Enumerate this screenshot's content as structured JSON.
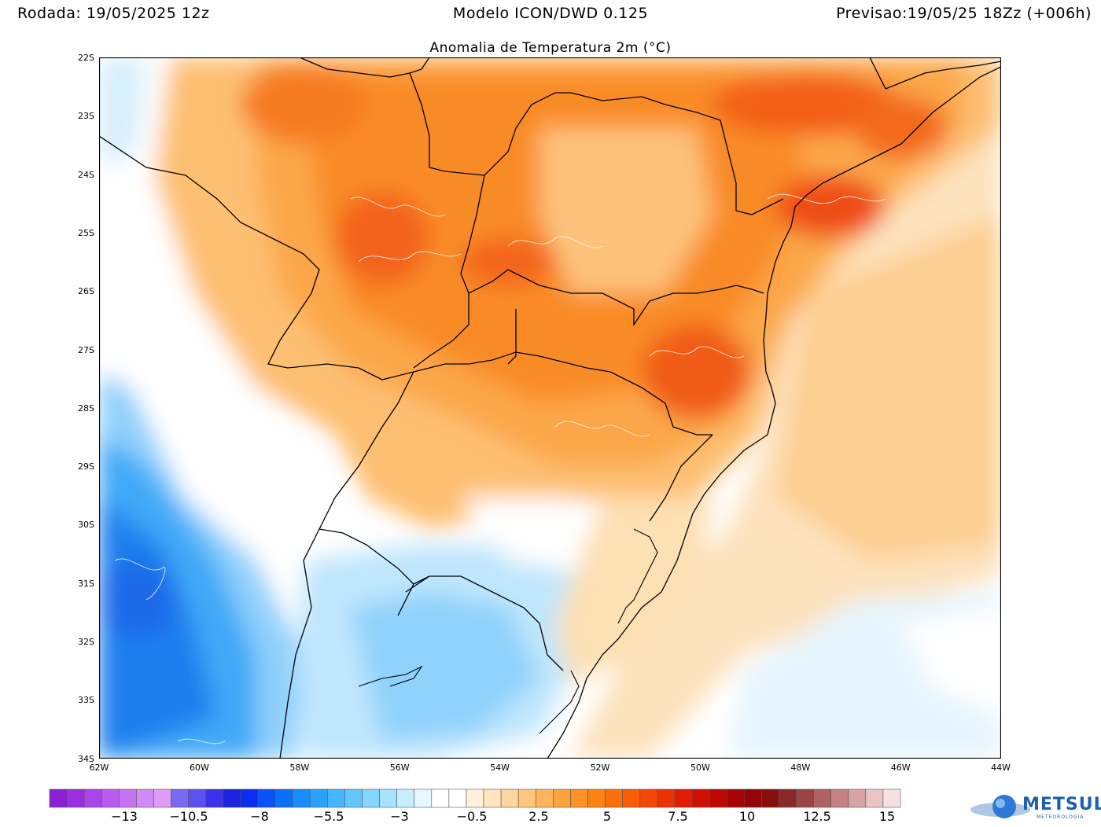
{
  "header": {
    "left": "Rodada: 19/05/2025 12z",
    "center": "Modelo ICON/DWD 0.125",
    "right": "Previsao:19/05/25 18Zz (+006h)"
  },
  "subtitle": "Anomalia de Temperatura 2m (°C)",
  "lat_labels": [
    "22S",
    "23S",
    "24S",
    "25S",
    "26S",
    "27S",
    "28S",
    "29S",
    "30S",
    "31S",
    "32S",
    "33S",
    "34S"
  ],
  "lon_labels": [
    "62W",
    "60W",
    "58W",
    "56W",
    "54W",
    "52W",
    "50W",
    "48W",
    "46W",
    "44W"
  ],
  "colorbar": {
    "colors": [
      "#8a1fd6",
      "#9b2fe0",
      "#ab44e8",
      "#b95cee",
      "#c673f3",
      "#d38af6",
      "#de9cf8",
      "#7a6af2",
      "#5d50ee",
      "#3a33ea",
      "#1f22e0",
      "#0b2ff0",
      "#0a52f5",
      "#0c6ff8",
      "#1b8cfb",
      "#2aa2fc",
      "#45b5fd",
      "#62c6fd",
      "#85d6fe",
      "#a6e3fe",
      "#c8eefe",
      "#e6f7ff",
      "#ffffff",
      "#ffffff",
      "#fff1dc",
      "#ffe4bf",
      "#fed59e",
      "#fec57d",
      "#feb45c",
      "#fda33d",
      "#fd9326",
      "#fc8214",
      "#fb6f0b",
      "#f85d09",
      "#f34707",
      "#ec3105",
      "#e01d04",
      "#cf0f04",
      "#bd0804",
      "#a80404",
      "#940507",
      "#861010",
      "#8a2828",
      "#9c4444",
      "#b06262",
      "#c48282",
      "#d8a3a3",
      "#e8c4c4",
      "#f6e1e1"
    ],
    "labels": [
      "−13",
      "−10.5",
      "−8",
      "−5.5",
      "−3",
      "−0.5",
      "2.5",
      "5",
      "7.5",
      "10",
      "12.5",
      "15"
    ]
  },
  "palette": {
    "deep_blue": "#1f6fe8",
    "mid_blue": "#3aa0f5",
    "light_blue": "#a8dcfb",
    "pale_blue": "#dff2fd",
    "cream": "#fde9cc",
    "light_orange": "#fdd298",
    "orange": "#fba94a",
    "dark_orange": "#f98522",
    "red_orange": "#f15a16",
    "red": "#e12a0e"
  },
  "logo": {
    "brand": "METSUL",
    "tagline": "METEOROLOGIA"
  }
}
